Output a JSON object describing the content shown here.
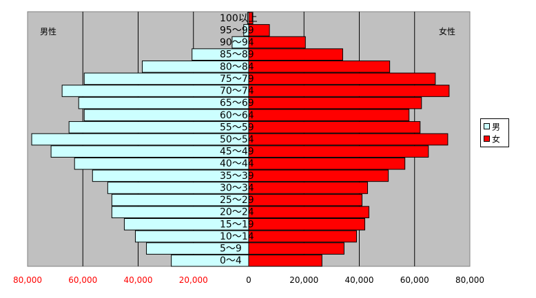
{
  "chart_data": {
    "type": "bar",
    "orientation": "horizontal",
    "style": "population-pyramid",
    "categories": [
      "0～4",
      "5～9",
      "10～14",
      "15～19",
      "20～24",
      "25～29",
      "30～34",
      "35～39",
      "40～44",
      "45～49",
      "50～54",
      "55～59",
      "60～64",
      "65～69",
      "70～74",
      "75～79",
      "80～84",
      "85～89",
      "90～94",
      "95～99",
      "100以上"
    ],
    "series": [
      {
        "name": "男",
        "side": "left",
        "color": "#ccffff",
        "values": [
          28000,
          37000,
          41000,
          45000,
          49500,
          49500,
          51000,
          56500,
          63000,
          71500,
          78500,
          65000,
          59500,
          61500,
          67500,
          59500,
          38500,
          20500,
          6000,
          1800,
          400
        ]
      },
      {
        "name": "女",
        "side": "right",
        "color": "#ff0000",
        "values": [
          26500,
          34500,
          39000,
          42000,
          43500,
          41000,
          43000,
          50500,
          56500,
          65000,
          72000,
          62000,
          58000,
          62500,
          72500,
          67500,
          51000,
          34000,
          20500,
          7500,
          1500
        ]
      }
    ],
    "xlim": [
      -80000,
      80000
    ],
    "x_ticks": [
      {
        "value": -80000,
        "label": "80,000",
        "color": "#ff0000"
      },
      {
        "value": -60000,
        "label": "60,000",
        "color": "#ff0000"
      },
      {
        "value": -40000,
        "label": "40,000",
        "color": "#ff0000"
      },
      {
        "value": -20000,
        "label": "20,000",
        "color": "#ff0000"
      },
      {
        "value": 0,
        "label": "0",
        "color": "#000000"
      },
      {
        "value": 20000,
        "label": "20,000",
        "color": "#000000"
      },
      {
        "value": 40000,
        "label": "40,000",
        "color": "#000000"
      },
      {
        "value": 60000,
        "label": "60,000",
        "color": "#000000"
      },
      {
        "value": 80000,
        "label": "80,000",
        "color": "#000000"
      }
    ],
    "side_labels": {
      "left": "男性",
      "right": "女性"
    },
    "grid": true,
    "plot_background": "#c0c0c0",
    "legend_position": "right"
  }
}
